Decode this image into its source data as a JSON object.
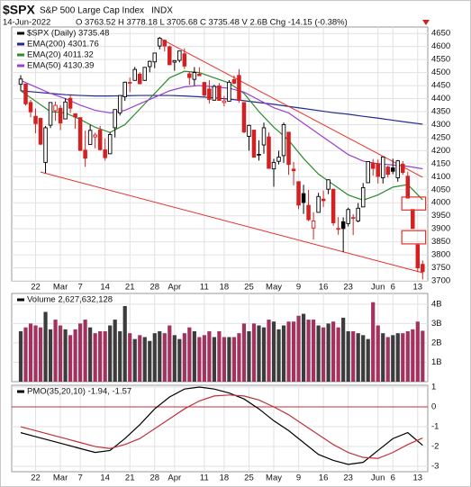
{
  "header": {
    "symbol": "$SPX",
    "name": "S&P 500 Large Cap Index",
    "exchange": "INDX",
    "date": "14-Jun-2022",
    "quote": "O 3763.52  H 3778.18  L 3705.68  C 3735.48  V 2.6B  Chg -14.15 (-0.38%)"
  },
  "chart_data": [
    {
      "type": "candlestick",
      "legend": [
        "$SPX (Daily) 3735.48",
        "EMA(200) 4301.76",
        "EMA(20) 4011.32",
        "EMA(50) 4130.39"
      ],
      "legend_colors": [
        "#000000",
        "#1f2a8c",
        "#2e8b2e",
        "#9b3fd1"
      ],
      "ohlc": [
        [
          4455,
          4490,
          4430,
          4475
        ],
        [
          4456,
          4456,
          4373,
          4380
        ],
        [
          4385,
          4395,
          4328,
          4349
        ],
        [
          4332,
          4362,
          4267,
          4304
        ],
        [
          4324,
          4327,
          4221,
          4225
        ],
        [
          4155,
          4295,
          4114,
          4288
        ],
        [
          4298,
          4385,
          4287,
          4385
        ],
        [
          4354,
          4388,
          4315,
          4374
        ],
        [
          4363,
          4375,
          4279,
          4306
        ],
        [
          4322,
          4401,
          4322,
          4387
        ],
        [
          4401,
          4417,
          4345,
          4363
        ],
        [
          4342,
          4343,
          4284,
          4329
        ],
        [
          4327,
          4327,
          4199,
          4201
        ],
        [
          4202,
          4277,
          4138,
          4171
        ],
        [
          4224,
          4300,
          4224,
          4278
        ],
        [
          4253,
          4269,
          4209,
          4260
        ],
        [
          4279,
          4295,
          4200,
          4204
        ],
        [
          4203,
          4247,
          4162,
          4173
        ],
        [
          4188,
          4272,
          4187,
          4262
        ],
        [
          4288,
          4358,
          4251,
          4358
        ],
        [
          4345,
          4412,
          4335,
          4412
        ],
        [
          4407,
          4465,
          4391,
          4463
        ],
        [
          4462,
          4481,
          4425,
          4461
        ],
        [
          4470,
          4522,
          4469,
          4512
        ],
        [
          4494,
          4501,
          4455,
          4457
        ],
        [
          4470,
          4520,
          4468,
          4520
        ],
        [
          4523,
          4546,
          4501,
          4543
        ],
        [
          4541,
          4575,
          4517,
          4575
        ],
        [
          4602,
          4637,
          4589,
          4632
        ],
        [
          4624,
          4627,
          4581,
          4602
        ],
        [
          4599,
          4604,
          4530,
          4530
        ],
        [
          4540,
          4548,
          4507,
          4546
        ],
        [
          4547,
          4583,
          4539,
          4583
        ],
        [
          4572,
          4593,
          4514,
          4525
        ],
        [
          4495,
          4504,
          4453,
          4481
        ],
        [
          4474,
          4521,
          4450,
          4500
        ],
        [
          4494,
          4520,
          4487,
          4488
        ],
        [
          4462,
          4464,
          4408,
          4413
        ],
        [
          4437,
          4471,
          4381,
          4397
        ],
        [
          4394,
          4453,
          4392,
          4447
        ],
        [
          4449,
          4460,
          4392,
          4393
        ],
        [
          4385,
          4410,
          4370,
          4391
        ],
        [
          4390,
          4471,
          4390,
          4463
        ],
        [
          4473,
          4489,
          4455,
          4459
        ],
        [
          4489,
          4513,
          4384,
          4393
        ],
        [
          4385,
          4386,
          4267,
          4272
        ],
        [
          4255,
          4300,
          4200,
          4297
        ],
        [
          4279,
          4279,
          4175,
          4175
        ],
        [
          4186,
          4240,
          4162,
          4183
        ],
        [
          4222,
          4308,
          4188,
          4288
        ],
        [
          4253,
          4270,
          4131,
          4132
        ],
        [
          4130,
          4169,
          4062,
          4155
        ],
        [
          4159,
          4200,
          4147,
          4175
        ],
        [
          4181,
          4308,
          4153,
          4300
        ],
        [
          4271,
          4271,
          4107,
          4147
        ],
        [
          4129,
          4157,
          4067,
          4123
        ],
        [
          4081,
          4081,
          3975,
          3991
        ],
        [
          4035,
          4069,
          3957,
          4001
        ],
        [
          3990,
          4049,
          3929,
          3935
        ],
        [
          3903,
          3964,
          3859,
          3930
        ],
        [
          3963,
          4038,
          3963,
          4024
        ],
        [
          4014,
          4047,
          3984,
          4008
        ],
        [
          4052,
          4090,
          4033,
          4088
        ],
        [
          4052,
          4052,
          3912,
          3923
        ],
        [
          3899,
          3945,
          3877,
          3901
        ],
        [
          3927,
          3944,
          3810,
          3901
        ],
        [
          3920,
          3981,
          3909,
          3974
        ],
        [
          3943,
          3956,
          3876,
          3941
        ],
        [
          3930,
          3999,
          3925,
          3979
        ],
        [
          3984,
          4076,
          3984,
          4058
        ],
        [
          4077,
          4158,
          4077,
          4158
        ],
        [
          4152,
          4168,
          4104,
          4132
        ],
        [
          4150,
          4166,
          4074,
          4101
        ],
        [
          4096,
          4177,
          4074,
          4176
        ],
        [
          4137,
          4143,
          4097,
          4109
        ],
        [
          4134,
          4169,
          4110,
          4121
        ],
        [
          4096,
          4164,
          4081,
          4161
        ],
        [
          4148,
          4160,
          4107,
          4116
        ],
        [
          4102,
          4119,
          4017,
          4018
        ],
        [
          3974,
          3974,
          3900,
          3901
        ],
        [
          3838,
          3838,
          3734,
          3750
        ],
        [
          3763.52,
          3778.18,
          3705.68,
          3735.48
        ]
      ],
      "x": [
        0,
        3,
        6,
        9,
        12,
        15,
        18,
        21,
        24,
        27,
        30,
        33,
        36,
        39,
        42,
        45,
        48,
        51,
        54,
        57,
        60,
        63,
        66,
        69,
        72,
        75,
        78,
        81
      ],
      "series": [
        {
          "name": "EMA(200)",
          "color": "#1f2a8c",
          "values": [
            4430,
            4425,
            4420,
            4415,
            4412,
            4410,
            4410,
            4411,
            4412,
            4412,
            4412,
            4410,
            4407,
            4403,
            4398,
            4392,
            4385,
            4378,
            4370,
            4362,
            4354,
            4346,
            4340,
            4332,
            4325,
            4317,
            4309,
            4301.76
          ]
        },
        {
          "name": "EMA(20)",
          "color": "#2e8b2e",
          "values": [
            4430,
            4390,
            4350,
            4345,
            4320,
            4290,
            4270,
            4300,
            4360,
            4420,
            4480,
            4505,
            4500,
            4480,
            4460,
            4420,
            4350,
            4290,
            4240,
            4170,
            4110,
            4070,
            4030,
            4010,
            4030,
            4060,
            4070,
            4011.32
          ]
        },
        {
          "name": "EMA(50)",
          "color": "#9b3fd1",
          "values": [
            4470,
            4445,
            4420,
            4400,
            4375,
            4355,
            4345,
            4355,
            4380,
            4405,
            4430,
            4445,
            4450,
            4445,
            4440,
            4425,
            4395,
            4365,
            4345,
            4305,
            4265,
            4225,
            4185,
            4160,
            4150,
            4145,
            4140,
            4130.39
          ]
        }
      ],
      "trendlines": [
        {
          "x": [
            28,
            81
          ],
          "y": [
            4632,
            4098
          ]
        },
        {
          "x": [
            4,
            81
          ],
          "y": [
            4118,
            3731
          ]
        }
      ],
      "boxes": [
        {
          "x": [
            76.8,
            81.6
          ],
          "y": [
            3972,
            4022
          ]
        },
        {
          "x": [
            76.8,
            81.6
          ],
          "y": [
            3842,
            3893
          ]
        }
      ],
      "ylim": [
        3700,
        4675
      ],
      "yticks": [
        3700,
        3750,
        3800,
        3850,
        3900,
        3950,
        4000,
        4050,
        4100,
        4150,
        4200,
        4250,
        4300,
        4350,
        4400,
        4450,
        4500,
        4550,
        4600,
        4650
      ],
      "xticks": [
        {
          "value": 3,
          "label": "22"
        },
        {
          "value": 8,
          "label": "Mar"
        },
        {
          "value": 12,
          "label": "7"
        },
        {
          "value": 17,
          "label": "14"
        },
        {
          "value": 22,
          "label": "21"
        },
        {
          "value": 27,
          "label": "28"
        },
        {
          "value": 31,
          "label": "Apr"
        },
        {
          "value": 37,
          "label": "11"
        },
        {
          "value": 41,
          "label": "18"
        },
        {
          "value": 46,
          "label": "25"
        },
        {
          "value": 51,
          "label": "May"
        },
        {
          "value": 56,
          "label": "9"
        },
        {
          "value": 61,
          "label": "16"
        },
        {
          "value": 66,
          "label": "23"
        },
        {
          "value": 72,
          "label": "Jun"
        },
        {
          "value": 75,
          "label": "6"
        },
        {
          "value": 80,
          "label": "13"
        }
      ],
      "grid": true
    },
    {
      "type": "bar",
      "legend": [
        "Volume 2,627,632,128"
      ],
      "up_color": "#3c3c3c",
      "down_color": "#a3325f",
      "values": [
        2600000000.0,
        2800000000.0,
        3000000000.0,
        2900000000.0,
        2800000000.0,
        3600000000.0,
        2700000000.0,
        3200000000.0,
        2900000000.0,
        2700000000.0,
        2400000000.0,
        2700000000.0,
        3000000000.0,
        3200000000.0,
        2800000000.0,
        2500000000.0,
        2600000000.0,
        2600000000.0,
        2900000000.0,
        3200000000.0,
        2600000000.0,
        3900000000.0,
        2500000000.0,
        2200000000.0,
        2400000000.0,
        2300000000.0,
        2100000000.0,
        2500000000.0,
        2600000000.0,
        2500000000.0,
        2900000000.0,
        2400000000.0,
        2200000000.0,
        2500000000.0,
        2800000000.0,
        2600000000.0,
        2300000000.0,
        2400000000.0,
        2600000000.0,
        2300000000.0,
        2600000000.0,
        2300000000.0,
        2300000000.0,
        2300000000.0,
        2500000000.0,
        3000000000.0,
        2600000000.0,
        3000000000.0,
        2900000000.0,
        2800000000.0,
        3200000000.0,
        3100000000.0,
        2700000000.0,
        2900000000.0,
        3100000000.0,
        3100000000.0,
        3400000000.0,
        3500000000.0,
        3200000000.0,
        3200000000.0,
        2900000000.0,
        2800000000.0,
        3000000000.0,
        3100000000.0,
        2800000000.0,
        3300000000.0,
        2600000000.0,
        2600000000.0,
        2500000000.0,
        2400000000.0,
        2200000000.0,
        4100000000.0,
        2900000000.0,
        2500000000.0,
        2300000000.0,
        2400000000.0,
        2500000000.0,
        2500000000.0,
        2600000000.0,
        2700000000.0,
        3100000000.0,
        2627632128
      ],
      "ylim": [
        0,
        4550000000.0
      ],
      "yticks": [
        {
          "value": 1000000000.0,
          "label": "1B"
        },
        {
          "value": 2000000000.0,
          "label": "2B"
        },
        {
          "value": 3000000000.0,
          "label": "3B"
        },
        {
          "value": 4000000000.0,
          "label": "4B"
        }
      ],
      "grid": true
    },
    {
      "type": "line",
      "legend": [
        "PMO(35,20,10) -1.94, -1.57"
      ],
      "x": [
        0,
        3,
        6,
        9,
        12,
        15,
        18,
        21,
        24,
        27,
        30,
        33,
        36,
        39,
        42,
        45,
        48,
        51,
        54,
        57,
        60,
        63,
        66,
        69,
        72,
        75,
        78,
        81
      ],
      "series": [
        {
          "name": "PMO",
          "color": "#000000",
          "values": [
            -1.3,
            -1.5,
            -1.7,
            -1.9,
            -2.1,
            -2.3,
            -2.2,
            -1.6,
            -0.9,
            -0.1,
            0.5,
            0.9,
            1.0,
            0.9,
            0.7,
            0.4,
            -0.1,
            -0.7,
            -1.2,
            -1.8,
            -2.4,
            -2.7,
            -2.9,
            -2.8,
            -2.2,
            -1.6,
            -1.3,
            -1.94
          ]
        },
        {
          "name": "Signal",
          "color": "#c0303a",
          "values": [
            -1.0,
            -1.2,
            -1.4,
            -1.6,
            -1.8,
            -2.0,
            -2.1,
            -1.9,
            -1.6,
            -1.1,
            -0.6,
            -0.1,
            0.3,
            0.55,
            0.6,
            0.55,
            0.35,
            0.0,
            -0.4,
            -0.9,
            -1.4,
            -1.9,
            -2.3,
            -2.55,
            -2.6,
            -2.3,
            -1.9,
            -1.57
          ]
        }
      ],
      "ylim": [
        -3.27,
        1.09
      ],
      "yticks": [
        1,
        0,
        -1,
        -2,
        -3
      ],
      "xticks": [
        {
          "value": 3,
          "label": "22"
        },
        {
          "value": 8,
          "label": "Mar"
        },
        {
          "value": 12,
          "label": "7"
        },
        {
          "value": 17,
          "label": "14"
        },
        {
          "value": 22,
          "label": "21"
        },
        {
          "value": 27,
          "label": "28"
        },
        {
          "value": 31,
          "label": "Apr"
        },
        {
          "value": 37,
          "label": "11"
        },
        {
          "value": 41,
          "label": "18"
        },
        {
          "value": 46,
          "label": "25"
        },
        {
          "value": 51,
          "label": "May"
        },
        {
          "value": 56,
          "label": "9"
        },
        {
          "value": 61,
          "label": "16"
        },
        {
          "value": 66,
          "label": "23"
        },
        {
          "value": 72,
          "label": "Jun"
        },
        {
          "value": 75,
          "label": "6"
        },
        {
          "value": 80,
          "label": "13"
        }
      ],
      "grid": true
    }
  ]
}
